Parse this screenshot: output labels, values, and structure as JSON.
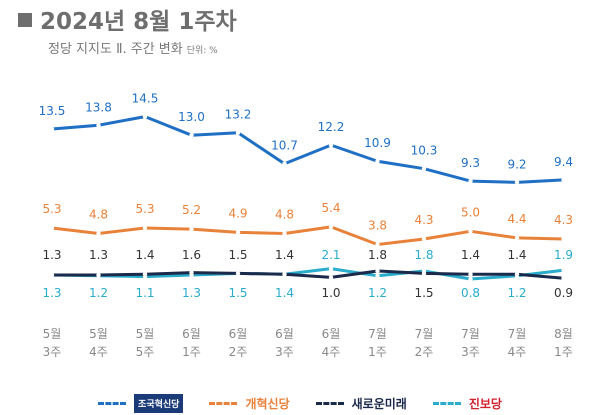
{
  "title": "2024년 8월 1주차",
  "subtitle": "정당 지지도 Ⅱ. 주간 변화",
  "unit": "단위: %",
  "chart_data": {
    "type": "line",
    "categories": [
      "5월 3주",
      "5월 4주",
      "5월 5주",
      "6월 1주",
      "6월 2주",
      "6월 3주",
      "6월 4주",
      "7월 1주",
      "7월 2주",
      "7월 3주",
      "7월 4주",
      "8월 1주"
    ],
    "series": [
      {
        "name": "조국혁신당",
        "color": "#1f6fc4",
        "values": [
          13.5,
          13.8,
          14.5,
          13.0,
          13.2,
          10.7,
          12.2,
          10.9,
          10.3,
          9.3,
          9.2,
          9.4
        ]
      },
      {
        "name": "개혁신당",
        "color": "#e8823a",
        "values": [
          5.3,
          4.8,
          5.3,
          5.2,
          4.9,
          4.8,
          5.4,
          3.8,
          4.3,
          5.0,
          4.4,
          4.3
        ]
      },
      {
        "name": "새로운미래",
        "color": "#1b2a4a",
        "values": [
          1.3,
          1.3,
          1.4,
          1.6,
          1.5,
          1.4,
          1.0,
          1.8,
          1.5,
          1.4,
          1.4,
          0.9
        ]
      },
      {
        "name": "진보당",
        "color": "#2aaccc",
        "values": [
          1.3,
          1.2,
          1.1,
          1.3,
          1.5,
          1.4,
          2.1,
          1.2,
          1.8,
          0.8,
          1.2,
          1.9
        ]
      }
    ],
    "grid": false,
    "legend": "bottom"
  }
}
